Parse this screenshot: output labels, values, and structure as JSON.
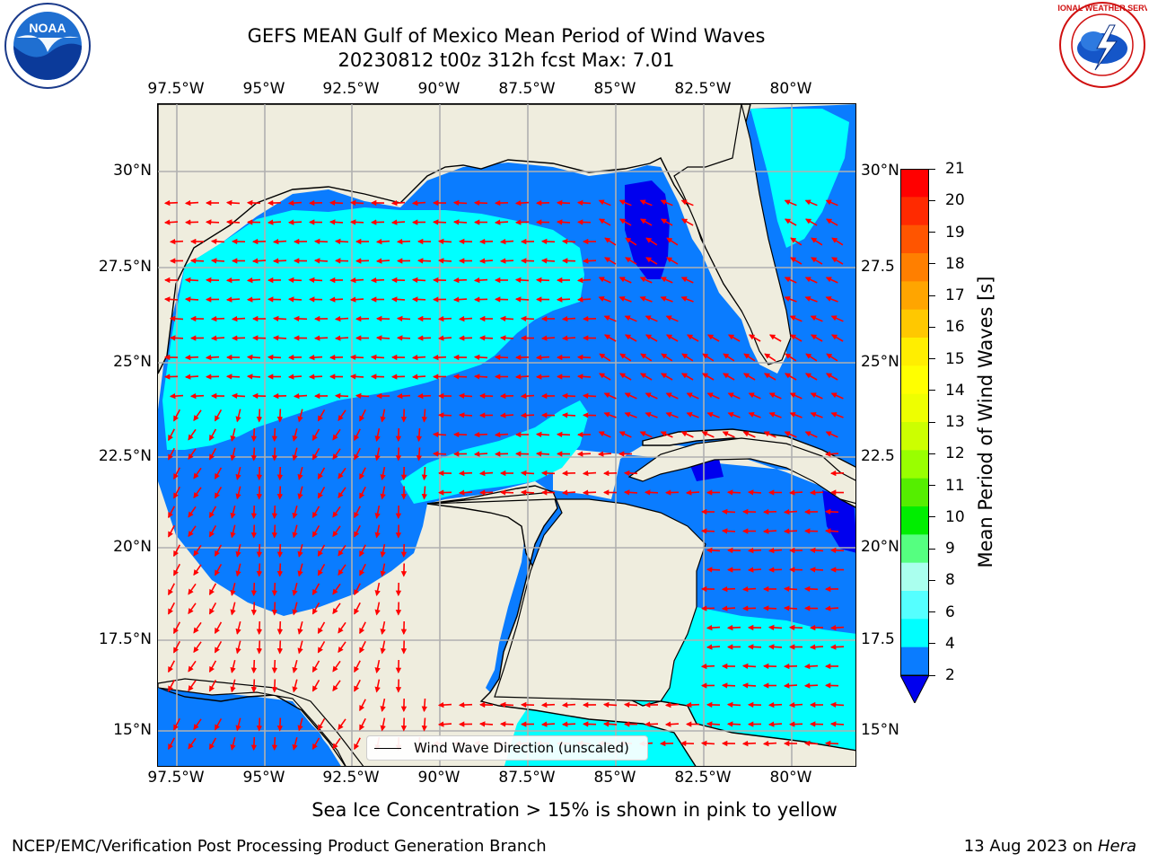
{
  "header": {
    "title_line1": "GEFS MEAN Gulf of Mexico Mean Period of Wind Waves",
    "title_line2": "20230812 t00z 312h fcst   Max: 7.01"
  },
  "logos": {
    "left": {
      "icon": "noaa-logo",
      "text": "NOAA"
    },
    "right": {
      "icon": "nws-logo",
      "text": "NATIONAL WEATHER SERVICE"
    }
  },
  "map": {
    "lon_labels": [
      "97.5°W",
      "95°W",
      "92.5°W",
      "90°W",
      "87.5°W",
      "85°W",
      "82.5°W",
      "80°W"
    ],
    "lat_labels_left": [
      "30°N",
      "27.5°N",
      "25°N",
      "22.5°N",
      "20°N",
      "17.5°N",
      "15°N"
    ],
    "lat_labels_right": [
      "30°N",
      "27.5",
      "25°N",
      "22.5",
      "20°N",
      "17.5",
      "15°N"
    ],
    "legend_label": "Wind Wave Direction (unscaled)",
    "colors": {
      "land": "#efedde",
      "period_2_4": "#0a7cff",
      "period_4_6": "#00ffff",
      "period_lt_2": "#0000ee",
      "arrow": "#ff0000",
      "grid": "#b0b0b0"
    }
  },
  "colorbar": {
    "label": "Mean Period of Wind Waves [s]",
    "ticks": [
      "21",
      "20",
      "19",
      "18",
      "17",
      "16",
      "15",
      "14",
      "13",
      "12",
      "11",
      "10",
      "9",
      "8",
      "6",
      "4",
      "2"
    ],
    "colors": [
      "#ff0000",
      "#ff2a00",
      "#ff5500",
      "#ff7f00",
      "#ffa500",
      "#ffc800",
      "#ffee00",
      "#ffff00",
      "#eeff00",
      "#ccff00",
      "#99ff00",
      "#55ee00",
      "#00ee00",
      "#55ff80",
      "#aaffee",
      "#55ffff",
      "#00ffff",
      "#0a7cff"
    ],
    "under_color": "#0000ee"
  },
  "footer": {
    "caption": "Sea Ice Concentration > 15% is shown in pink to yellow",
    "left": "NCEP/EMC/Verification Post Processing Product Generation Branch",
    "right_date": "13 Aug 2023 on ",
    "right_host": "Hera"
  }
}
